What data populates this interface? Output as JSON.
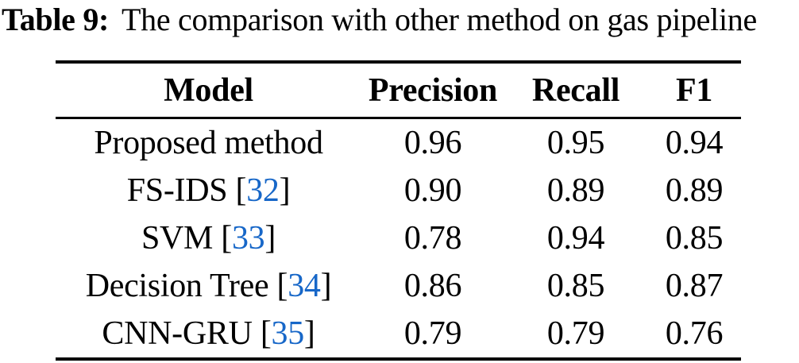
{
  "caption": {
    "label": "Table 9:",
    "text": "The comparison with other method on gas pipeline"
  },
  "colors": {
    "text": "#000000",
    "rule": "#000000",
    "citation_blue": "#1767c8",
    "background": "#ffffff"
  },
  "table": {
    "columns": [
      "Model",
      "Precision",
      "Recall",
      "F1"
    ],
    "rows": [
      {
        "model": "Proposed method",
        "ref": null,
        "precision": "0.96",
        "recall": "0.95",
        "f1": "0.94"
      },
      {
        "model": "FS-IDS",
        "ref": "32",
        "precision": "0.90",
        "recall": "0.89",
        "f1": "0.89"
      },
      {
        "model": "SVM",
        "ref": "33",
        "precision": "0.78",
        "recall": "0.94",
        "f1": "0.85"
      },
      {
        "model": "Decision Tree",
        "ref": "34",
        "precision": "0.86",
        "recall": "0.85",
        "f1": "0.87"
      },
      {
        "model": "CNN-GRU",
        "ref": "35",
        "precision": "0.79",
        "recall": "0.79",
        "f1": "0.76"
      }
    ]
  }
}
